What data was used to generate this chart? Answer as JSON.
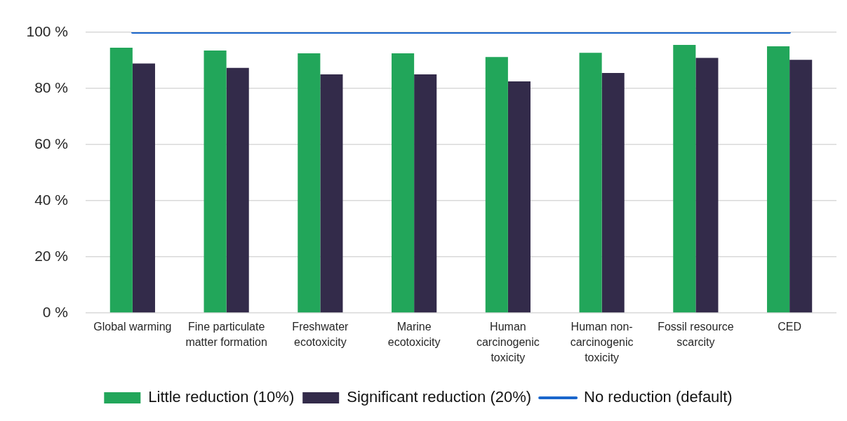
{
  "chart_data": {
    "type": "bar",
    "categories": [
      "Global warming",
      "Fine particulate matter formation",
      "Freshwater ecotoxicity",
      "Marine ecotoxicity",
      "Human carcinogenic toxicity",
      "Human non-carcinogenic toxicity",
      "Fossil resource scarcity",
      "CED"
    ],
    "series": [
      {
        "name": "Little reduction (10%)",
        "color": "#22a65a",
        "values": [
          94.5,
          93.5,
          92.5,
          92.5,
          91.2,
          92.7,
          95.5,
          95.0
        ]
      },
      {
        "name": "Significant reduction (20%)",
        "color": "#332b4a",
        "values": [
          88.9,
          87.3,
          85.0,
          85.0,
          82.5,
          85.5,
          90.9,
          90.2
        ]
      },
      {
        "name": "No reduction (default)",
        "type": "line",
        "color": "#1a66cc",
        "values": [
          100,
          100,
          100,
          100,
          100,
          100,
          100,
          100
        ]
      }
    ],
    "ylim": [
      0,
      100
    ],
    "yticks": [
      {
        "value": 0,
        "label": "0 %"
      },
      {
        "value": 20,
        "label": "20 %"
      },
      {
        "value": 40,
        "label": "40 %"
      },
      {
        "value": 60,
        "label": "60 %"
      },
      {
        "value": 80,
        "label": "80 %"
      },
      {
        "value": 100,
        "label": "100 %"
      }
    ],
    "grid": "y",
    "legend": "bottom"
  }
}
